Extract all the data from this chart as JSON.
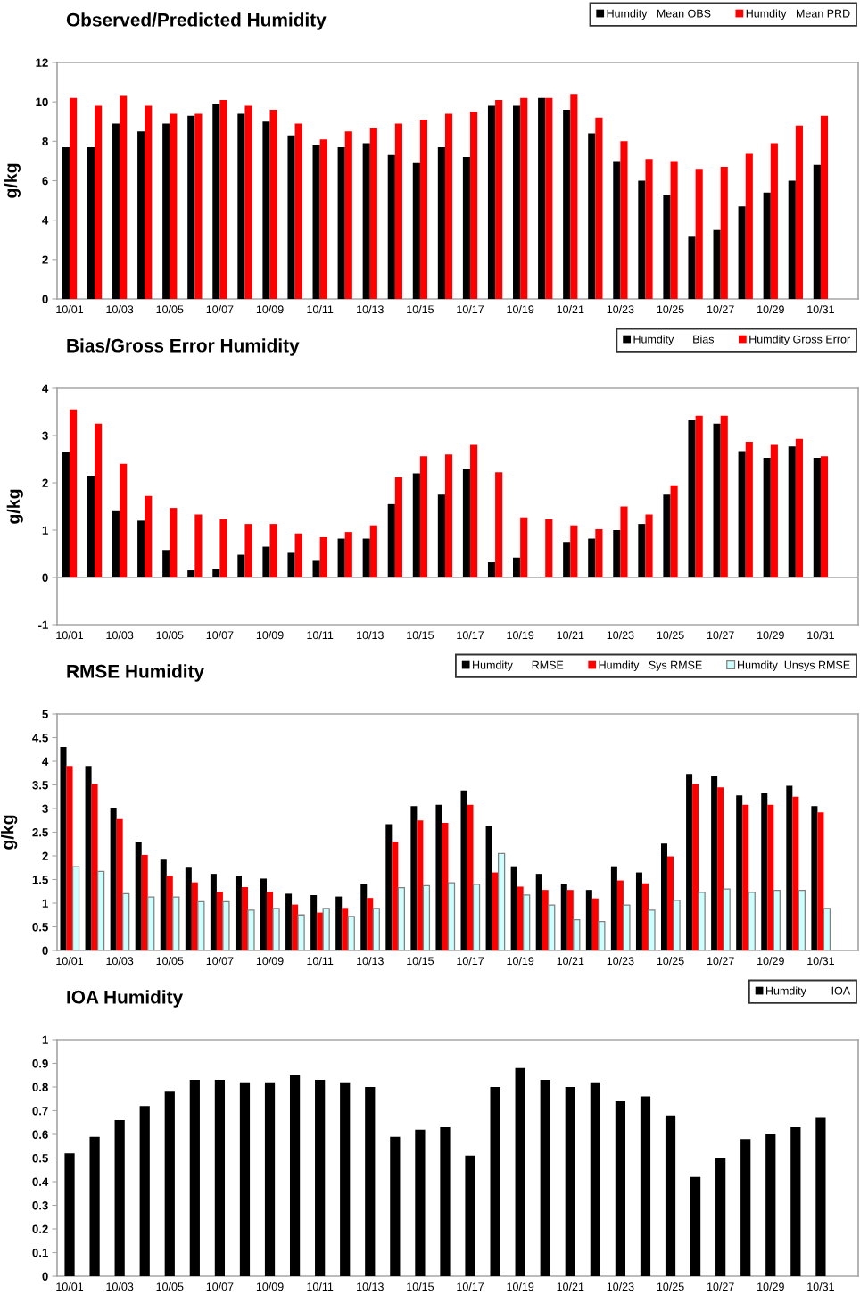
{
  "chart_data": [
    {
      "type": "bar",
      "title": "Observed/Predicted Humidity",
      "ylabel": "g/kg",
      "legend": "top right",
      "categories": [
        "10/01",
        null,
        "10/03",
        null,
        "10/05",
        null,
        "10/07",
        null,
        "10/09",
        null,
        "10/11",
        null,
        "10/13",
        null,
        "10/15",
        null,
        "10/17",
        null,
        "10/19",
        null,
        "10/21",
        null,
        "10/23",
        null,
        "10/25",
        null,
        "10/27",
        null,
        "10/29",
        null,
        "10/31",
        null
      ],
      "ylim": [
        0,
        12
      ],
      "yticks": [
        0,
        2,
        4,
        6,
        8,
        10,
        12
      ],
      "series": [
        {
          "name": "Humdity   Mean OBS",
          "color": "#000000",
          "values": [
            7.7,
            7.7,
            8.9,
            8.5,
            8.9,
            9.3,
            9.9,
            9.4,
            9.0,
            8.3,
            7.8,
            7.7,
            7.9,
            7.3,
            6.9,
            7.7,
            7.2,
            9.8,
            9.8,
            10.2,
            9.6,
            8.4,
            7.0,
            6.0,
            5.3,
            3.2,
            3.5,
            4.7,
            5.4,
            6.0,
            6.8,
            null
          ]
        },
        {
          "name": "Humdity   Mean PRD",
          "color": "#ff0000",
          "values": [
            10.2,
            9.8,
            10.3,
            9.8,
            9.4,
            9.4,
            10.1,
            9.8,
            9.6,
            8.9,
            8.1,
            8.5,
            8.7,
            8.9,
            9.1,
            9.4,
            9.5,
            10.1,
            10.2,
            10.2,
            10.4,
            9.2,
            8.0,
            7.1,
            7.0,
            6.6,
            6.7,
            7.4,
            7.9,
            8.8,
            9.3,
            null
          ]
        }
      ]
    },
    {
      "type": "bar",
      "title": "Bias/Gross Error Humidity",
      "ylabel": "g/kg",
      "legend": "top right",
      "categories": [
        "10/01",
        null,
        "10/03",
        null,
        "10/05",
        null,
        "10/07",
        null,
        "10/09",
        null,
        "10/11",
        null,
        "10/13",
        null,
        "10/15",
        null,
        "10/17",
        null,
        "10/19",
        null,
        "10/21",
        null,
        "10/23",
        null,
        "10/25",
        null,
        "10/27",
        null,
        "10/29",
        null,
        "10/31",
        null
      ],
      "ylim": [
        -1,
        4
      ],
      "yticks": [
        -1,
        0,
        1,
        2,
        3,
        4
      ],
      "ref_lines": [
        {
          "axis": "y",
          "value": 0,
          "color": "#a6a6a6"
        }
      ],
      "series": [
        {
          "name": "Humdity      Bias",
          "color": "#000000",
          "values": [
            2.65,
            2.15,
            1.4,
            1.2,
            0.58,
            0.15,
            0.18,
            0.48,
            0.65,
            0.52,
            0.35,
            0.82,
            0.82,
            1.55,
            2.2,
            1.75,
            2.3,
            0.32,
            0.42,
            0.01,
            0.75,
            0.82,
            1.0,
            1.13,
            1.75,
            3.32,
            3.25,
            2.67,
            2.53,
            2.77,
            2.53,
            null
          ]
        },
        {
          "name": "Humdity Gross Error",
          "color": "#ff0000",
          "values": [
            3.55,
            3.25,
            2.4,
            1.72,
            1.47,
            1.33,
            1.23,
            1.13,
            1.13,
            0.93,
            0.85,
            0.96,
            1.1,
            2.12,
            2.56,
            2.6,
            2.8,
            2.22,
            1.27,
            1.23,
            1.1,
            1.02,
            1.5,
            1.33,
            1.95,
            3.42,
            3.42,
            2.87,
            2.8,
            2.93,
            2.56,
            null
          ]
        }
      ]
    },
    {
      "type": "bar",
      "title": "RMSE Humidity",
      "ylabel": "g/kg",
      "legend": "top right",
      "categories": [
        "10/01",
        null,
        "10/03",
        null,
        "10/05",
        null,
        "10/07",
        null,
        "10/09",
        null,
        "10/11",
        null,
        "10/13",
        null,
        "10/15",
        null,
        "10/17",
        null,
        "10/19",
        null,
        "10/21",
        null,
        "10/23",
        null,
        "10/25",
        null,
        "10/27",
        null,
        "10/29",
        null,
        "10/31",
        null
      ],
      "ylim": [
        0,
        5
      ],
      "yticks": [
        0,
        0.5,
        1,
        1.5,
        2,
        2.5,
        3,
        3.5,
        4,
        4.5,
        5
      ],
      "series": [
        {
          "name": "Humdity      RMSE",
          "color": "#000000",
          "values": [
            4.3,
            3.9,
            3.02,
            2.3,
            1.92,
            1.75,
            1.62,
            1.58,
            1.52,
            1.2,
            1.17,
            1.14,
            1.41,
            2.67,
            3.05,
            3.08,
            3.38,
            2.63,
            1.78,
            1.62,
            1.41,
            1.28,
            1.78,
            1.65,
            2.26,
            3.73,
            3.7,
            3.28,
            3.32,
            3.48,
            3.05,
            null
          ]
        },
        {
          "name": "Humdity   Sys RMSE",
          "color": "#ff0000",
          "values": [
            3.9,
            3.52,
            2.78,
            2.02,
            1.58,
            1.44,
            1.24,
            1.34,
            1.24,
            0.97,
            0.8,
            0.9,
            1.11,
            2.3,
            2.75,
            2.7,
            3.08,
            1.65,
            1.35,
            1.28,
            1.28,
            1.1,
            1.48,
            1.42,
            1.99,
            3.52,
            3.45,
            3.08,
            3.08,
            3.25,
            2.92,
            null
          ]
        },
        {
          "name": "Humdity  Unsys RMSE",
          "color": "#ccffff",
          "values": [
            1.77,
            1.67,
            1.2,
            1.13,
            1.13,
            1.03,
            1.03,
            0.85,
            0.89,
            0.75,
            0.89,
            0.72,
            0.89,
            1.33,
            1.37,
            1.43,
            1.4,
            2.05,
            1.17,
            0.96,
            0.65,
            0.61,
            0.96,
            0.85,
            1.06,
            1.23,
            1.3,
            1.23,
            1.27,
            1.27,
            0.89,
            null
          ]
        }
      ]
    },
    {
      "type": "bar",
      "title": "IOA Humidity",
      "legend": "top right",
      "categories": [
        "10/01",
        null,
        "10/03",
        null,
        "10/05",
        null,
        "10/07",
        null,
        "10/09",
        null,
        "10/11",
        null,
        "10/13",
        null,
        "10/15",
        null,
        "10/17",
        null,
        "10/19",
        null,
        "10/21",
        null,
        "10/23",
        null,
        "10/25",
        null,
        "10/27",
        null,
        "10/29",
        null,
        "10/31",
        null
      ],
      "ylim": [
        0,
        1
      ],
      "yticks": [
        0,
        0.1,
        0.2,
        0.3,
        0.4,
        0.5,
        0.6,
        0.7,
        0.8,
        0.9,
        1
      ],
      "series": [
        {
          "name": "Humdity        IOA",
          "color": "#000000",
          "values": [
            0.52,
            0.59,
            0.66,
            0.72,
            0.78,
            0.83,
            0.83,
            0.82,
            0.82,
            0.85,
            0.83,
            0.82,
            0.8,
            0.59,
            0.62,
            0.63,
            0.51,
            0.8,
            0.88,
            0.83,
            0.8,
            0.82,
            0.74,
            0.76,
            0.68,
            0.42,
            0.5,
            0.58,
            0.6,
            0.63,
            0.67,
            null
          ]
        }
      ]
    }
  ]
}
